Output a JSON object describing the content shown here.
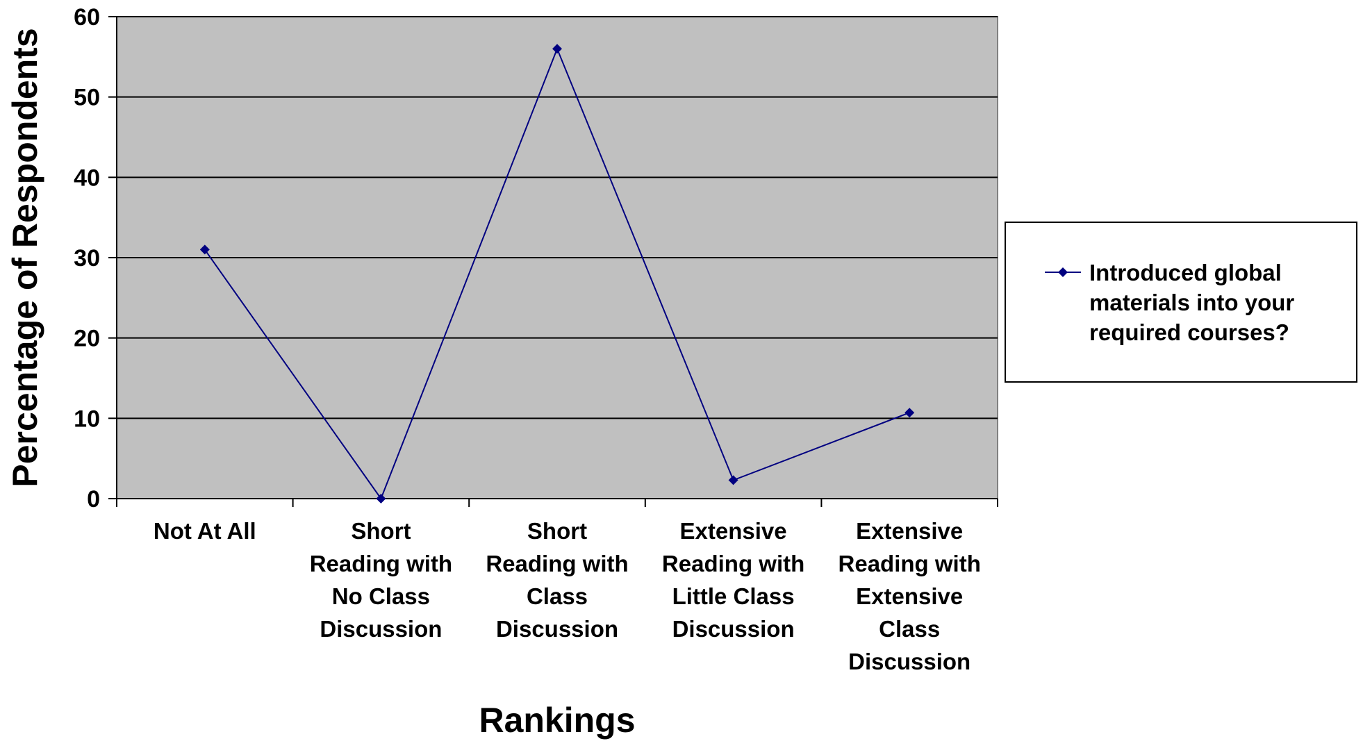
{
  "chart_data": {
    "type": "line",
    "categories": [
      [
        "Not At All"
      ],
      [
        "Short",
        "Reading with",
        "No Class",
        "Discussion"
      ],
      [
        "Short",
        "Reading with",
        "Class",
        "Discussion"
      ],
      [
        "Extensive",
        "Reading with",
        "Little Class",
        "Discussion"
      ],
      [
        "Extensive",
        "Reading with",
        "Extensive",
        "Class",
        "Discussion"
      ]
    ],
    "series": [
      {
        "name": [
          "Introduced global",
          "materials into your",
          "required courses?"
        ],
        "values": [
          31,
          0,
          56,
          2.3,
          10.7
        ],
        "color": "#000080"
      }
    ],
    "xlabel": "Rankings",
    "ylabel": "Percentage of Respondents",
    "ylim": [
      0,
      60
    ],
    "yticks": [
      0,
      10,
      20,
      30,
      40,
      50,
      60
    ],
    "grid": true,
    "plot_background": "#c0c0c0",
    "legend_position": "right"
  }
}
